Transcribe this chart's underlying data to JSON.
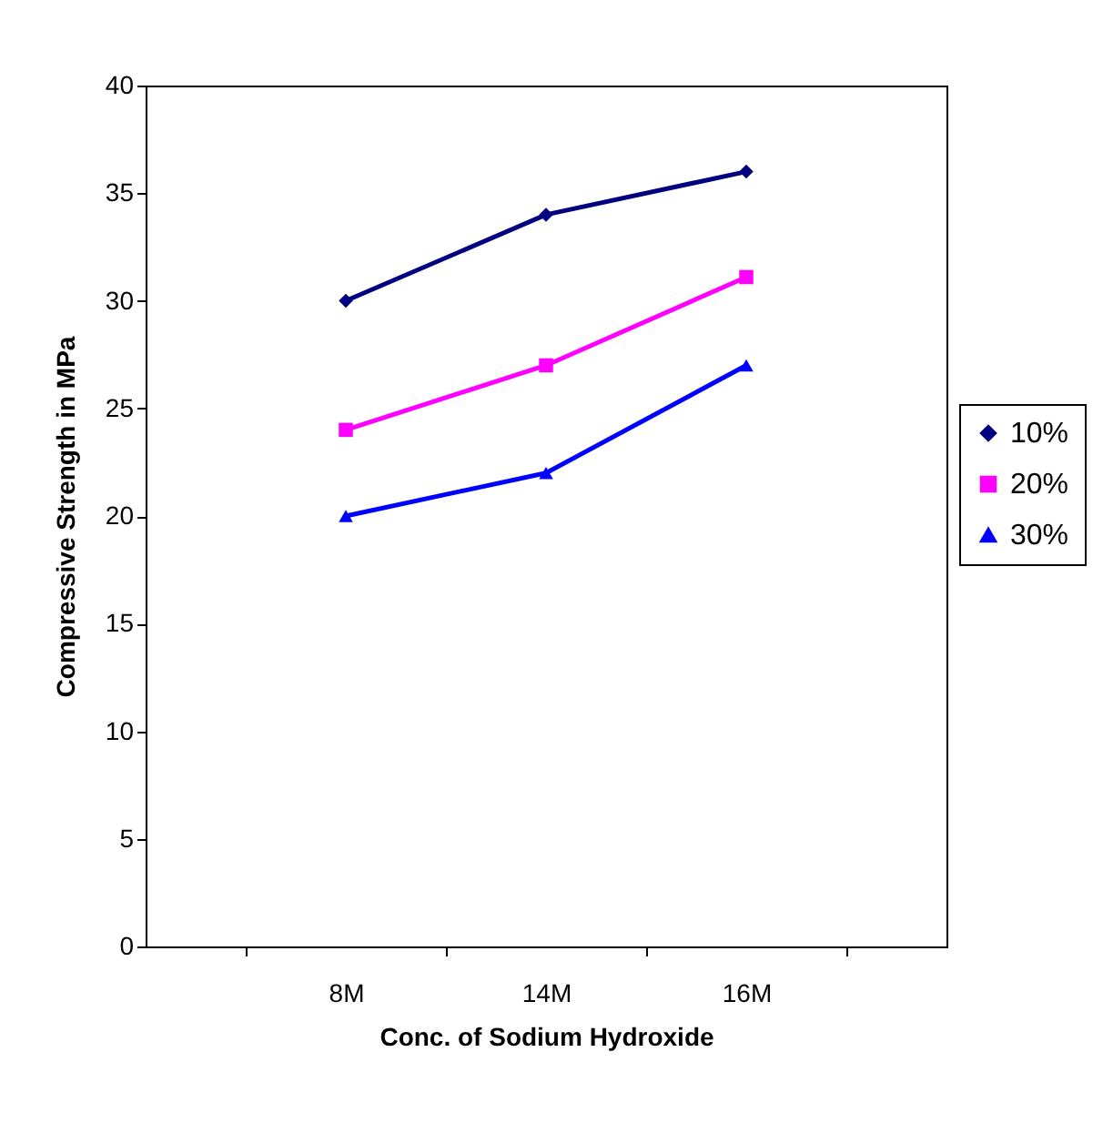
{
  "chart_data": {
    "type": "line",
    "xlabel": "Conc. of Sodium Hydroxide",
    "ylabel": "Compressive Strength in MPa",
    "categories": [
      "8M",
      "14M",
      "16M"
    ],
    "series": [
      {
        "name": "10%",
        "color": "#000080",
        "marker": "diamond",
        "values": [
          30,
          34,
          36
        ]
      },
      {
        "name": "20%",
        "color": "#ff00ff",
        "marker": "square",
        "values": [
          24,
          27,
          31.1
        ]
      },
      {
        "name": "30%",
        "color": "#0000ff",
        "marker": "triangle",
        "values": [
          20,
          22,
          27
        ]
      }
    ],
    "ylim": [
      0,
      40
    ],
    "yticks": [
      0,
      5,
      10,
      15,
      20,
      25,
      30,
      35,
      40
    ],
    "grid": false,
    "legend": "right",
    "line_style": "solid"
  }
}
